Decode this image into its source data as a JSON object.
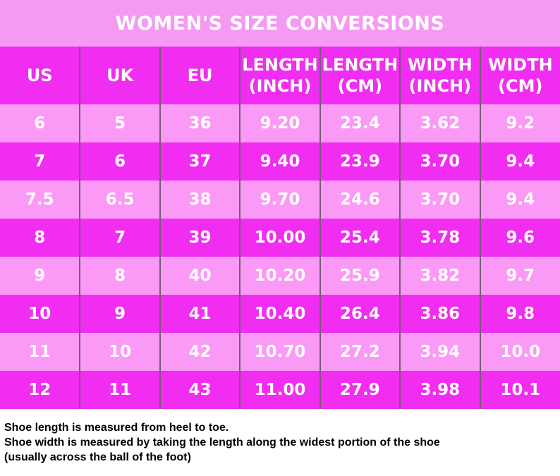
{
  "title": "WOMEN'S SIZE CONVERSIONS",
  "columns": [
    {
      "line1": "US",
      "line2": ""
    },
    {
      "line1": "UK",
      "line2": ""
    },
    {
      "line1": "EU",
      "line2": ""
    },
    {
      "line1": "LENGTH",
      "line2": "(INCH)"
    },
    {
      "line1": "LENGTH",
      "line2": "(CM)"
    },
    {
      "line1": "WIDTH",
      "line2": "(INCH)"
    },
    {
      "line1": "WIDTH",
      "line2": "(CM)"
    }
  ],
  "rows": [
    [
      "6",
      "5",
      "36",
      "9.20",
      "23.4",
      "3.62",
      "9.2"
    ],
    [
      "7",
      "6",
      "37",
      "9.40",
      "23.9",
      "3.70",
      "9.4"
    ],
    [
      "7.5",
      "6.5",
      "38",
      "9.70",
      "24.6",
      "3.70",
      "9.4"
    ],
    [
      "8",
      "7",
      "39",
      "10.00",
      "25.4",
      "3.78",
      "9.6"
    ],
    [
      "9",
      "8",
      "40",
      "10.20",
      "25.9",
      "3.82",
      "9.7"
    ],
    [
      "10",
      "9",
      "41",
      "10.40",
      "26.4",
      "3.86",
      "9.8"
    ],
    [
      "11",
      "10",
      "42",
      "10.70",
      "27.2",
      "3.94",
      "10.0"
    ],
    [
      "12",
      "11",
      "43",
      "11.00",
      "27.9",
      "3.98",
      "10.1"
    ]
  ],
  "notes": [
    "Shoe length is measured from heel to toe.",
    "Shoe width is measured by taking the length along the widest portion of the shoe",
    "(usually across the ball of the foot)"
  ],
  "colors": {
    "title_band": "#f59af3",
    "dark_row": "#f02df0",
    "light_row": "#fb99f7",
    "text": "#ffffff",
    "divider": "#7a5a7a"
  }
}
